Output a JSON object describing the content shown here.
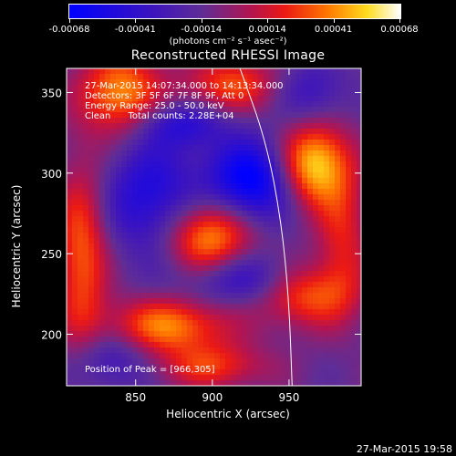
{
  "colorbar": {
    "tick_labels": [
      "-0.00068",
      "-0.00041",
      "-0.00014",
      "0.00014",
      "0.00041",
      "0.00068"
    ],
    "units": "(photons cm⁻² s⁻¹ asec⁻²)"
  },
  "chart_data": {
    "type": "heatmap",
    "title": "Reconstructed RHESSI Image",
    "xlabel": "Heliocentric X (arcsec)",
    "ylabel": "Heliocentric Y (arcsec)",
    "xlim": [
      805,
      997
    ],
    "ylim": [
      168,
      365
    ],
    "xticks": [
      850,
      900,
      950
    ],
    "yticks": [
      200,
      250,
      300,
      350
    ],
    "colorbar_range": [
      -0.00068,
      0.00068
    ],
    "limb_curve": [
      [
        918,
        365
      ],
      [
        935,
        320
      ],
      [
        945,
        270
      ],
      [
        950,
        220
      ],
      [
        952,
        168
      ]
    ],
    "info_lines": [
      "27-Mar-2015 14:07:34.000 to 14:13:34.000",
      "Detectors: 3F 5F 6F 7F 8F 9F, Att 0",
      "Energy Range: 25.0 - 50.0 keV",
      "Clean      Total counts: 2.28E+04"
    ],
    "peak_label": "Position of Peak = [966,305]",
    "peak_position": [
      966,
      305
    ],
    "sources": [
      {
        "x": 966,
        "y": 305,
        "amp": 0.00068,
        "sx": 16,
        "sy": 18
      },
      {
        "x": 898,
        "y": 260,
        "amp": 0.0006,
        "sx": 20,
        "sy": 17
      },
      {
        "x": 840,
        "y": 350,
        "amp": 0.00055,
        "sx": 18,
        "sy": 18
      },
      {
        "x": 870,
        "y": 205,
        "amp": 0.00052,
        "sx": 28,
        "sy": 12
      },
      {
        "x": 815,
        "y": 250,
        "amp": 0.00045,
        "sx": 12,
        "sy": 40
      },
      {
        "x": 960,
        "y": 225,
        "amp": 0.00045,
        "sx": 22,
        "sy": 14
      },
      {
        "x": 900,
        "y": 180,
        "amp": 0.00035,
        "sx": 25,
        "sy": 10
      },
      {
        "x": 912,
        "y": 355,
        "amp": 0.0004,
        "sx": 22,
        "sy": 12
      },
      {
        "x": 985,
        "y": 260,
        "amp": 0.0003,
        "sx": 12,
        "sy": 30
      },
      {
        "x": 925,
        "y": 295,
        "amp": -0.0006,
        "sx": 20,
        "sy": 18
      },
      {
        "x": 860,
        "y": 285,
        "amp": -0.0004,
        "sx": 22,
        "sy": 25
      },
      {
        "x": 920,
        "y": 235,
        "amp": -0.00035,
        "sx": 28,
        "sy": 12
      },
      {
        "x": 880,
        "y": 330,
        "amp": -0.0003,
        "sx": 20,
        "sy": 10
      },
      {
        "x": 965,
        "y": 350,
        "amp": -0.00025,
        "sx": 16,
        "sy": 14
      },
      {
        "x": 835,
        "y": 185,
        "amp": -0.00025,
        "sx": 18,
        "sy": 14
      }
    ]
  },
  "timestamp": "27-Mar-2015 19:58"
}
